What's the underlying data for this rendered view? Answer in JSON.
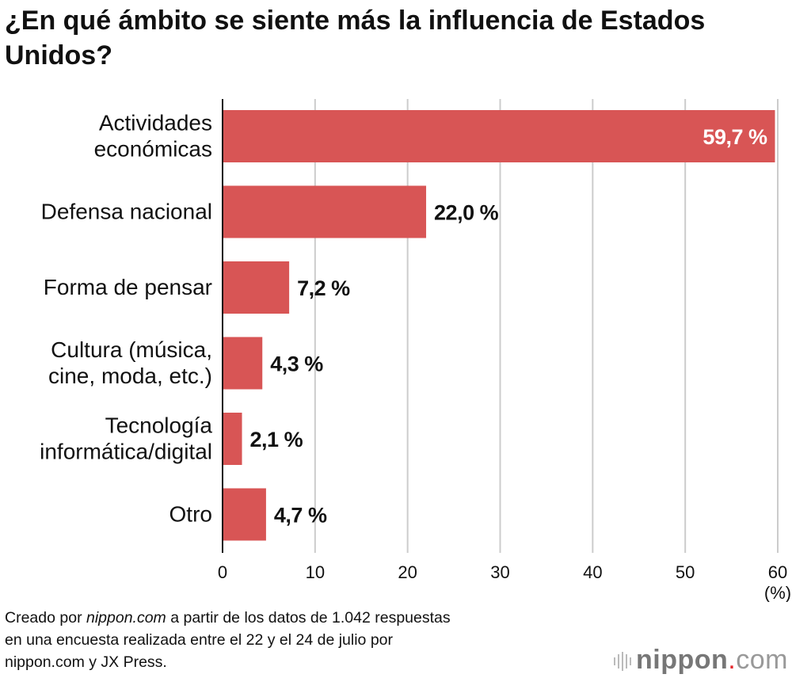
{
  "chart_data": {
    "type": "bar",
    "orientation": "horizontal",
    "title": "¿En qué ámbito se siente más la influencia de Estados Unidos?",
    "categories": [
      [
        "Actividades",
        "económicas"
      ],
      [
        "Defensa nacional"
      ],
      [
        "Forma de pensar"
      ],
      [
        "Cultura (música,",
        "cine, moda, etc.)"
      ],
      [
        "Tecnología",
        "informática/digital"
      ],
      [
        "Otro"
      ]
    ],
    "values": [
      59.7,
      22.0,
      7.2,
      4.3,
      2.1,
      4.7
    ],
    "data_labels": [
      "59,7 %",
      "22,0 %",
      "7,2 %",
      "4,3 %",
      "2,1 %",
      "4,7 %"
    ],
    "xlim": [
      0,
      60
    ],
    "xticks": [
      "0",
      "10",
      "20",
      "30",
      "40",
      "50",
      "60"
    ],
    "xlabel": "(%)",
    "grid": true,
    "bar_color": "#d85555"
  },
  "note": {
    "line1_prefix": "Creado por ",
    "line1_site": "nippon.com",
    "line1_suffix": " a partir de los datos de 1.042 respuestas",
    "line2": "en una encuesta realizada entre el 22 y el 24 de julio por",
    "line3": "nippon.com y JX Press."
  },
  "logo": {
    "name": "nippon",
    "dot": ".",
    "tld": "com"
  }
}
